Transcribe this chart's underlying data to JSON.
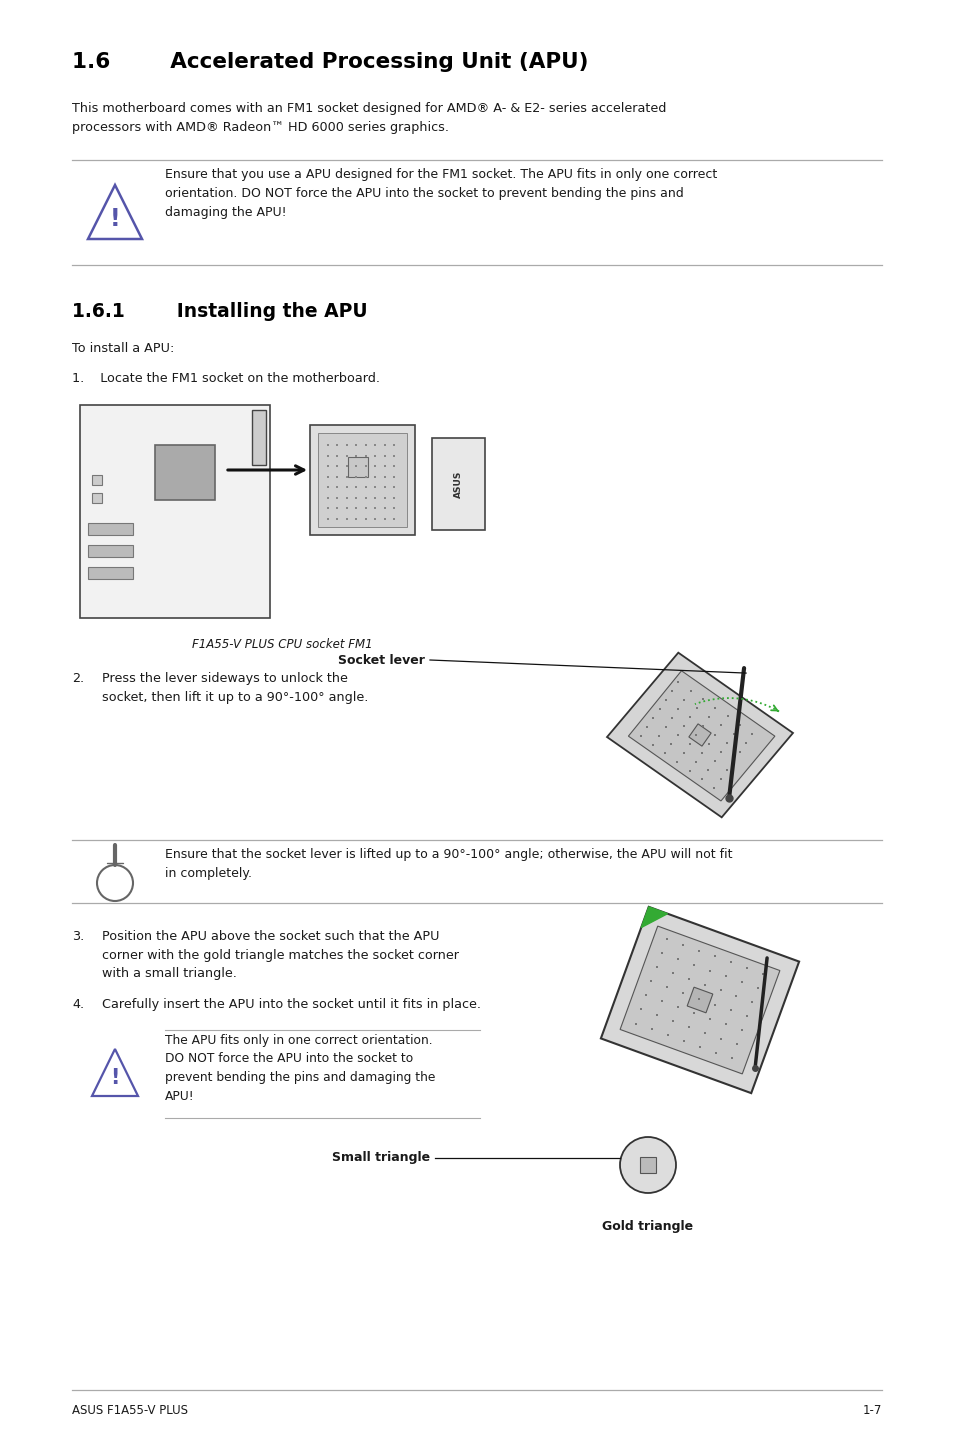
{
  "bg_color": "#ffffff",
  "title_16": "1.6        Accelerated Processing Unit (APU)",
  "body_text_1": "This motherboard comes with an FM1 socket designed for AMD® A- & E2- series accelerated\nprocessors with AMD® Radeon™ HD 6000 series graphics.",
  "section_161_title": "1.6.1        Installing the APU",
  "to_install": "To install a APU:",
  "step1": "1.    Locate the FM1 socket on the motherboard.",
  "label_fm1": "F1A55-V PLUS CPU socket FM1",
  "step2_num": "2.",
  "step2_text": "Press the lever sideways to unlock the\nsocket, then lift it up to a 90°-100° angle.",
  "socket_lever_label": "Socket lever",
  "step3_num": "3.",
  "step3_text": "Position the APU above the socket such that the APU\ncorner with the gold triangle matches the socket corner\nwith a small triangle.",
  "step4_num": "4.",
  "step4_text": "Carefully insert the APU into the socket until it fits in place.",
  "small_triangle_label": "Small triangle",
  "gold_triangle_label": "Gold triangle",
  "warning1_text": "Ensure that you use a APU designed for the FM1 socket. The APU fits in only one correct\norientation. DO NOT force the APU into the socket to prevent bending the pins and\ndamaging the APU!",
  "warning2_text": "Ensure that the socket lever is lifted up to a 90°-100° angle; otherwise, the APU will not fit\nin completely.",
  "warning3_text": "The APU fits only in one correct orientation.\nDO NOT force the APU into the socket to\nprevent bending the pins and damaging the\nAPU!",
  "footer_left": "ASUS F1A55-V PLUS",
  "footer_right": "1-7",
  "line_color": "#aaaaaa",
  "text_color": "#1a1a1a",
  "title_color": "#000000",
  "warn_icon_color": "#5555aa",
  "note_icon_color": "#666666",
  "diagram_edge": "#444444",
  "diagram_fill": "#e8e8e8",
  "diagram_dark": "#888888",
  "green_color": "#33aa33"
}
